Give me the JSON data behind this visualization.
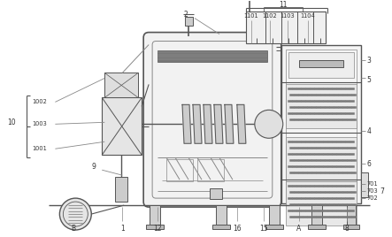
{
  "bg_color": "#ffffff",
  "lc": "#888888",
  "dc": "#555555",
  "fc_light": "#f0f0f0",
  "fc_med": "#d8d8d8",
  "fc_dark": "#aaaaaa",
  "figsize": [
    4.43,
    2.68
  ],
  "dpi": 100
}
